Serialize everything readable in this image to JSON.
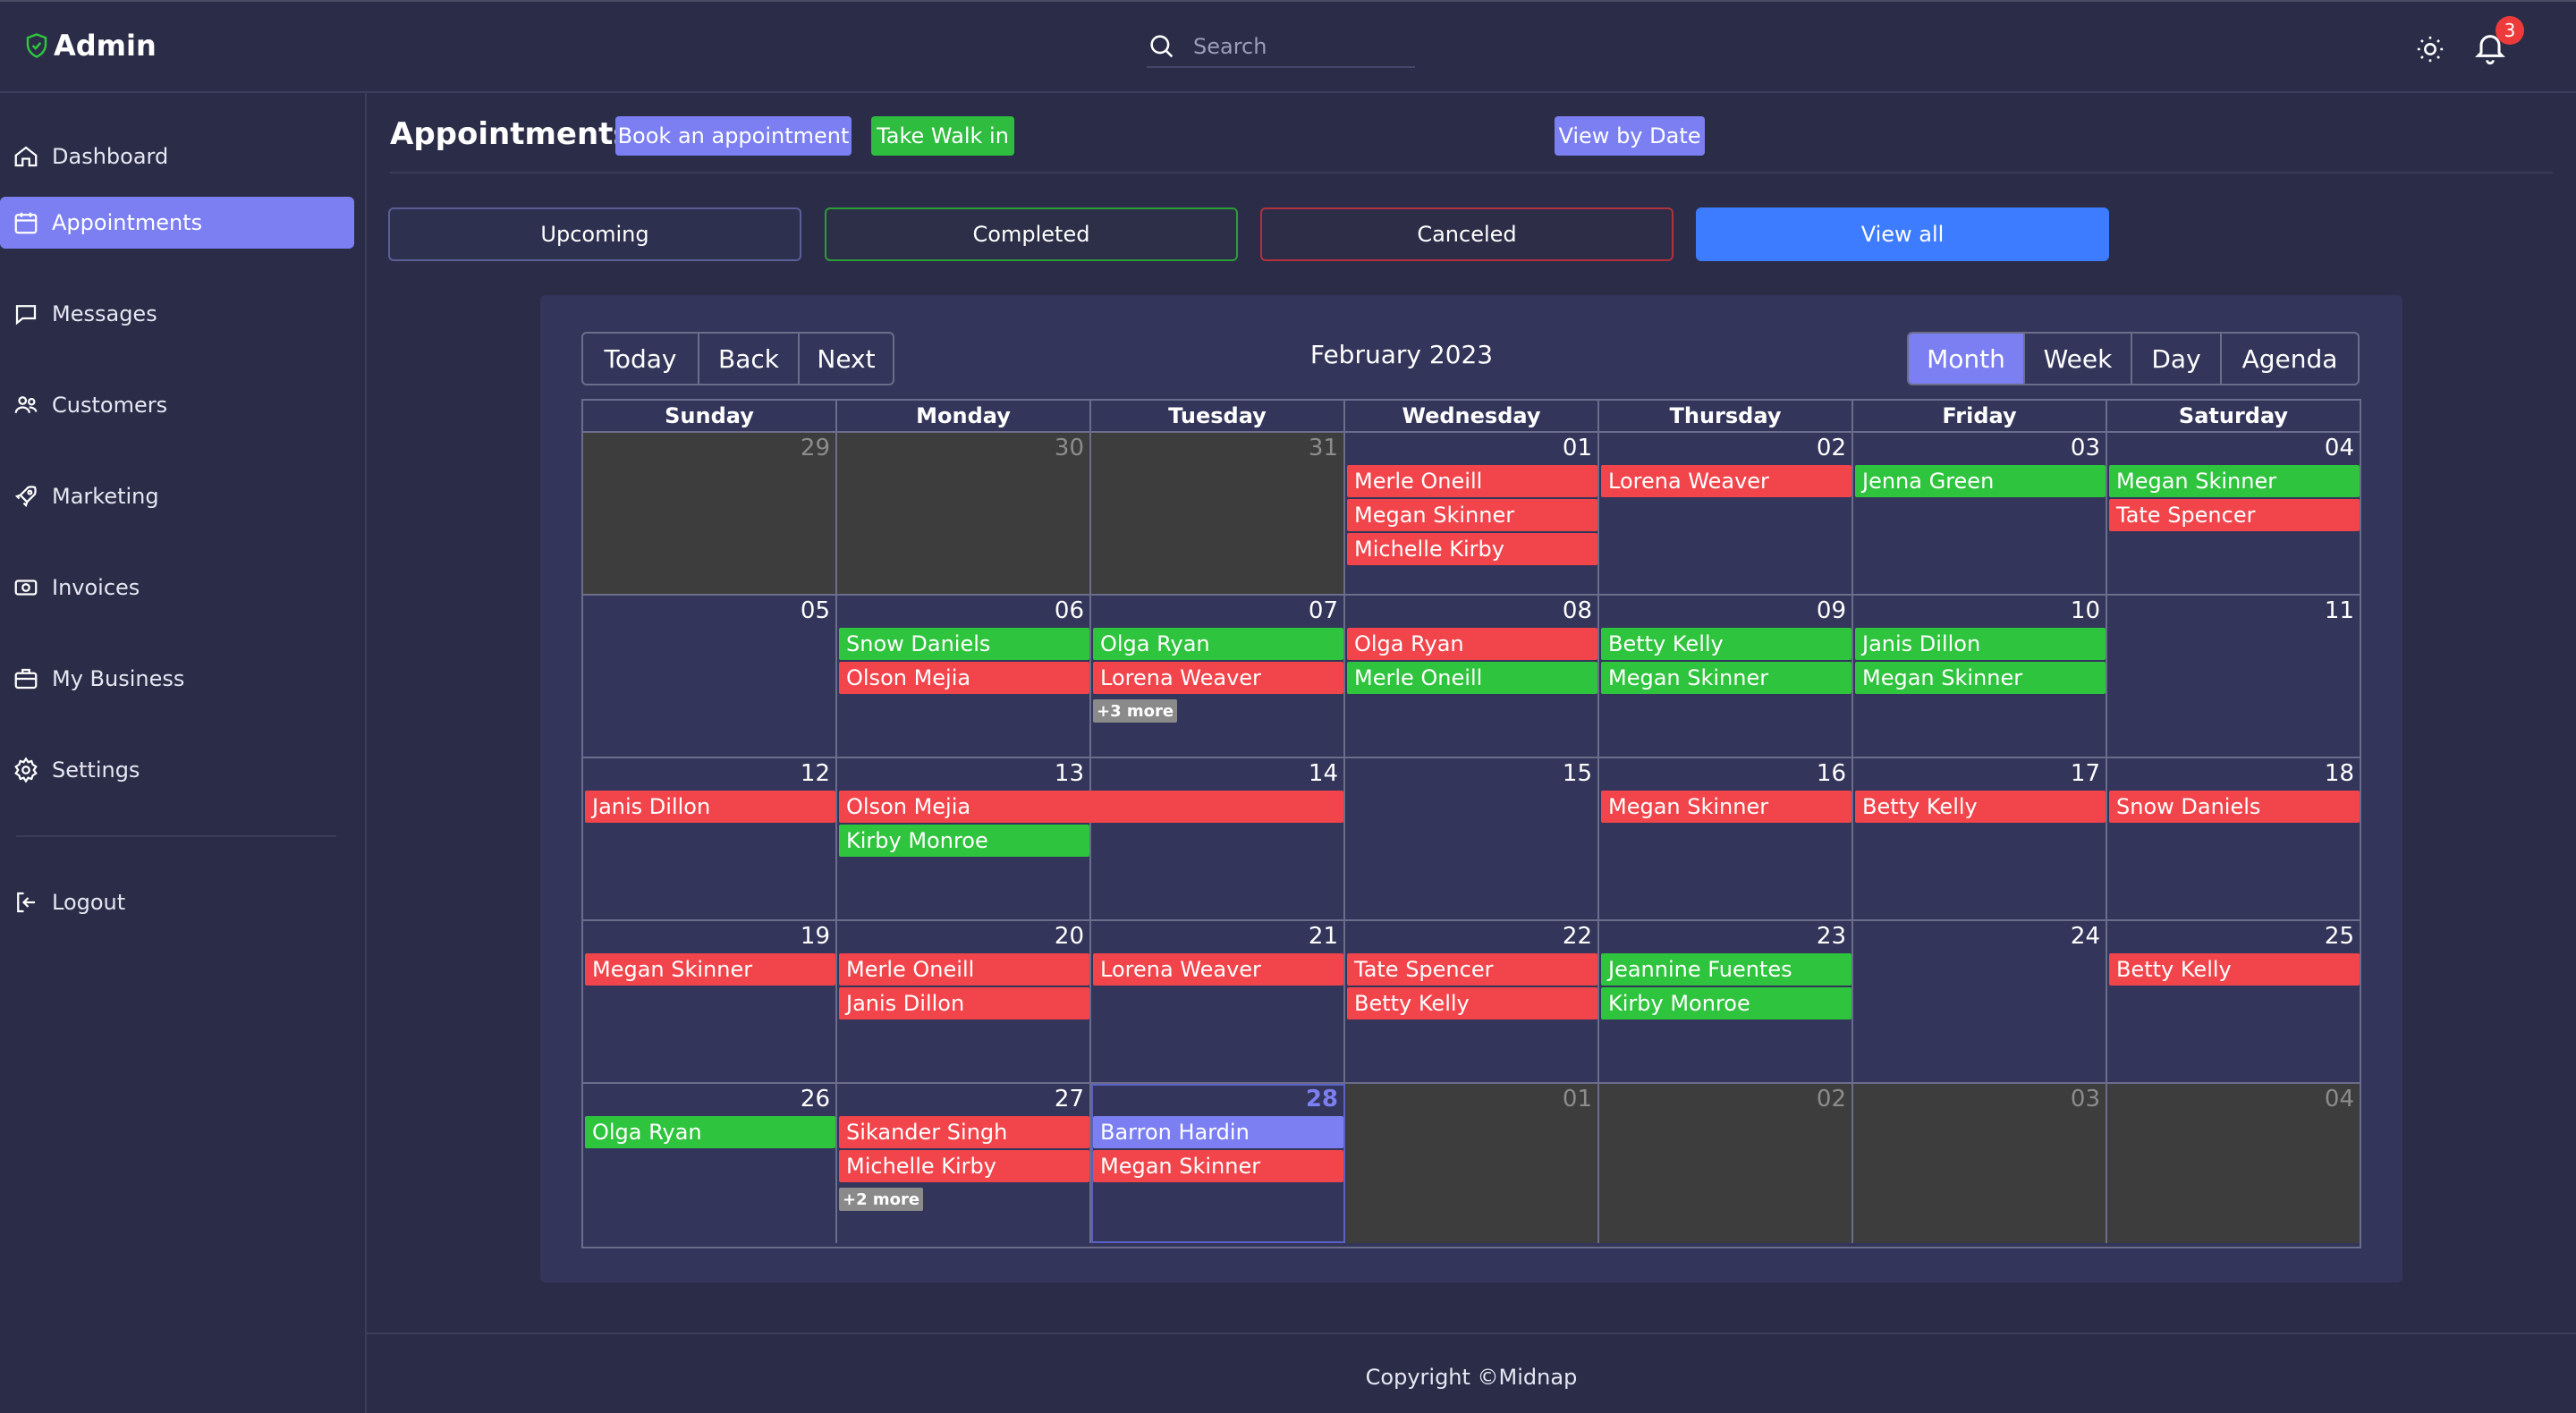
{
  "app": {
    "title": "Admin",
    "search_placeholder": "Search",
    "notification_count": "3",
    "colors": {
      "accent": "#7b7ff2",
      "green": "#2fc43d",
      "red": "#f1444b",
      "blue": "#3d7bff"
    }
  },
  "sidebar": {
    "items": [
      {
        "label": "Dashboard",
        "icon": "home-icon"
      },
      {
        "label": "Appointments",
        "icon": "calendar-icon"
      },
      {
        "label": "Messages",
        "icon": "chat-icon"
      },
      {
        "label": "Customers",
        "icon": "users-icon"
      },
      {
        "label": "Marketing",
        "icon": "rocket-icon"
      },
      {
        "label": "Invoices",
        "icon": "money-icon"
      },
      {
        "label": "My Business",
        "icon": "briefcase-icon"
      },
      {
        "label": "Settings",
        "icon": "gear-icon"
      }
    ],
    "logout": "Logout"
  },
  "header": {
    "title": "Appointments",
    "book_label": "Book an appointment",
    "walk_label": "Take Walk in",
    "date_label": "View by Date"
  },
  "filters": {
    "upcoming": "Upcoming",
    "completed": "Completed",
    "canceled": "Canceled",
    "view_all": "View all"
  },
  "calendar": {
    "nav": [
      "Today",
      "Back",
      "Next"
    ],
    "label": "February 2023",
    "views": [
      "Month",
      "Week",
      "Day",
      "Agenda"
    ],
    "active_view": "Month",
    "weekdays": [
      "Sunday",
      "Monday",
      "Tuesday",
      "Wednesday",
      "Thursday",
      "Friday",
      "Saturday"
    ],
    "weeks": [
      [
        {
          "num": "29",
          "off": true
        },
        {
          "num": "30",
          "off": true
        },
        {
          "num": "31",
          "off": true
        },
        {
          "num": "01"
        },
        {
          "num": "02"
        },
        {
          "num": "03"
        },
        {
          "num": "04"
        }
      ],
      [
        {
          "num": "05"
        },
        {
          "num": "06"
        },
        {
          "num": "07",
          "more": "+3 more"
        },
        {
          "num": "08"
        },
        {
          "num": "09"
        },
        {
          "num": "10"
        },
        {
          "num": "11"
        }
      ],
      [
        {
          "num": "12"
        },
        {
          "num": "13"
        },
        {
          "num": "14"
        },
        {
          "num": "15"
        },
        {
          "num": "16"
        },
        {
          "num": "17"
        },
        {
          "num": "18"
        }
      ],
      [
        {
          "num": "19"
        },
        {
          "num": "20"
        },
        {
          "num": "21"
        },
        {
          "num": "22"
        },
        {
          "num": "23"
        },
        {
          "num": "24"
        },
        {
          "num": "25"
        }
      ],
      [
        {
          "num": "26"
        },
        {
          "num": "27",
          "more": "+2 more"
        },
        {
          "num": "28",
          "today": true
        },
        {
          "num": "01",
          "off": true
        },
        {
          "num": "02",
          "off": true
        },
        {
          "num": "03",
          "off": true
        },
        {
          "num": "04",
          "off": true
        }
      ]
    ],
    "events": [
      {
        "name": "Merle Oneill",
        "color": "red",
        "week": 0,
        "day": 3,
        "span": 1,
        "slot": 0
      },
      {
        "name": "Megan Skinner",
        "color": "red",
        "week": 0,
        "day": 3,
        "span": 1,
        "slot": 1
      },
      {
        "name": "Michelle Kirby",
        "color": "red",
        "week": 0,
        "day": 3,
        "span": 1,
        "slot": 2
      },
      {
        "name": "Lorena Weaver",
        "color": "red",
        "week": 0,
        "day": 4,
        "span": 1,
        "slot": 0
      },
      {
        "name": "Jenna Green",
        "color": "green",
        "week": 0,
        "day": 5,
        "span": 1,
        "slot": 0
      },
      {
        "name": "Megan Skinner",
        "color": "green",
        "week": 0,
        "day": 6,
        "span": 1,
        "slot": 0
      },
      {
        "name": "Tate Spencer",
        "color": "red",
        "week": 0,
        "day": 6,
        "span": 1,
        "slot": 1
      },
      {
        "name": "Snow Daniels",
        "color": "green",
        "week": 1,
        "day": 1,
        "span": 1,
        "slot": 0
      },
      {
        "name": "Olson Mejia",
        "color": "red",
        "week": 1,
        "day": 1,
        "span": 1,
        "slot": 1
      },
      {
        "name": "Olga Ryan",
        "color": "green",
        "week": 1,
        "day": 2,
        "span": 1,
        "slot": 0
      },
      {
        "name": "Lorena Weaver",
        "color": "red",
        "week": 1,
        "day": 2,
        "span": 1,
        "slot": 1
      },
      {
        "name": "Olga Ryan",
        "color": "red",
        "week": 1,
        "day": 3,
        "span": 1,
        "slot": 0
      },
      {
        "name": "Merle Oneill",
        "color": "green",
        "week": 1,
        "day": 3,
        "span": 1,
        "slot": 1
      },
      {
        "name": "Betty Kelly",
        "color": "green",
        "week": 1,
        "day": 4,
        "span": 1,
        "slot": 0
      },
      {
        "name": "Megan Skinner",
        "color": "green",
        "week": 1,
        "day": 4,
        "span": 1,
        "slot": 1
      },
      {
        "name": "Janis Dillon",
        "color": "green",
        "week": 1,
        "day": 5,
        "span": 1,
        "slot": 0
      },
      {
        "name": "Megan Skinner",
        "color": "green",
        "week": 1,
        "day": 5,
        "span": 1,
        "slot": 1
      },
      {
        "name": "Janis Dillon",
        "color": "red",
        "week": 2,
        "day": 0,
        "span": 1,
        "slot": 0
      },
      {
        "name": "Olson Mejia",
        "color": "red",
        "week": 2,
        "day": 1,
        "span": 2,
        "slot": 0
      },
      {
        "name": "Kirby Monroe",
        "color": "green",
        "week": 2,
        "day": 1,
        "span": 1,
        "slot": 1
      },
      {
        "name": "Megan Skinner",
        "color": "red",
        "week": 2,
        "day": 4,
        "span": 1,
        "slot": 0
      },
      {
        "name": "Betty Kelly",
        "color": "red",
        "week": 2,
        "day": 5,
        "span": 1,
        "slot": 0
      },
      {
        "name": "Snow Daniels",
        "color": "red",
        "week": 2,
        "day": 6,
        "span": 1,
        "slot": 0
      },
      {
        "name": "Megan Skinner",
        "color": "red",
        "week": 3,
        "day": 0,
        "span": 1,
        "slot": 0
      },
      {
        "name": "Merle Oneill",
        "color": "red",
        "week": 3,
        "day": 1,
        "span": 1,
        "slot": 0
      },
      {
        "name": "Janis Dillon",
        "color": "red",
        "week": 3,
        "day": 1,
        "span": 1,
        "slot": 1
      },
      {
        "name": "Lorena Weaver",
        "color": "red",
        "week": 3,
        "day": 2,
        "span": 1,
        "slot": 0
      },
      {
        "name": "Tate Spencer",
        "color": "red",
        "week": 3,
        "day": 3,
        "span": 1,
        "slot": 0
      },
      {
        "name": "Betty Kelly",
        "color": "red",
        "week": 3,
        "day": 3,
        "span": 1,
        "slot": 1
      },
      {
        "name": "Jeannine Fuentes",
        "color": "green",
        "week": 3,
        "day": 4,
        "span": 1,
        "slot": 0
      },
      {
        "name": "Kirby Monroe",
        "color": "green",
        "week": 3,
        "day": 4,
        "span": 1,
        "slot": 1
      },
      {
        "name": "Betty Kelly",
        "color": "red",
        "week": 3,
        "day": 6,
        "span": 1,
        "slot": 0
      },
      {
        "name": "Olga Ryan",
        "color": "green",
        "week": 4,
        "day": 0,
        "span": 1,
        "slot": 0
      },
      {
        "name": "Sikander Singh",
        "color": "red",
        "week": 4,
        "day": 1,
        "span": 1,
        "slot": 0
      },
      {
        "name": "Michelle Kirby",
        "color": "red",
        "week": 4,
        "day": 1,
        "span": 1,
        "slot": 1
      },
      {
        "name": "Barron Hardin",
        "color": "blue",
        "week": 4,
        "day": 2,
        "span": 1,
        "slot": 0
      },
      {
        "name": "Megan Skinner",
        "color": "red",
        "week": 4,
        "day": 2,
        "span": 1,
        "slot": 1
      }
    ]
  },
  "footer": {
    "copyright": "Copyright ©Midnap"
  }
}
